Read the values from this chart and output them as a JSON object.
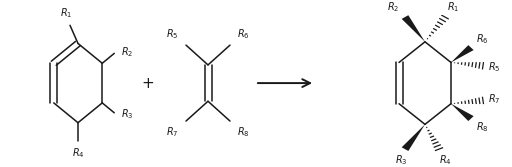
{
  "fig_width": 5.12,
  "fig_height": 1.67,
  "dpi": 100,
  "bg_color": "#ffffff",
  "line_color": "#1a1a1a",
  "text_color": "#1a1a1a",
  "font_size_label": 7.0,
  "font_size_plus": 11
}
